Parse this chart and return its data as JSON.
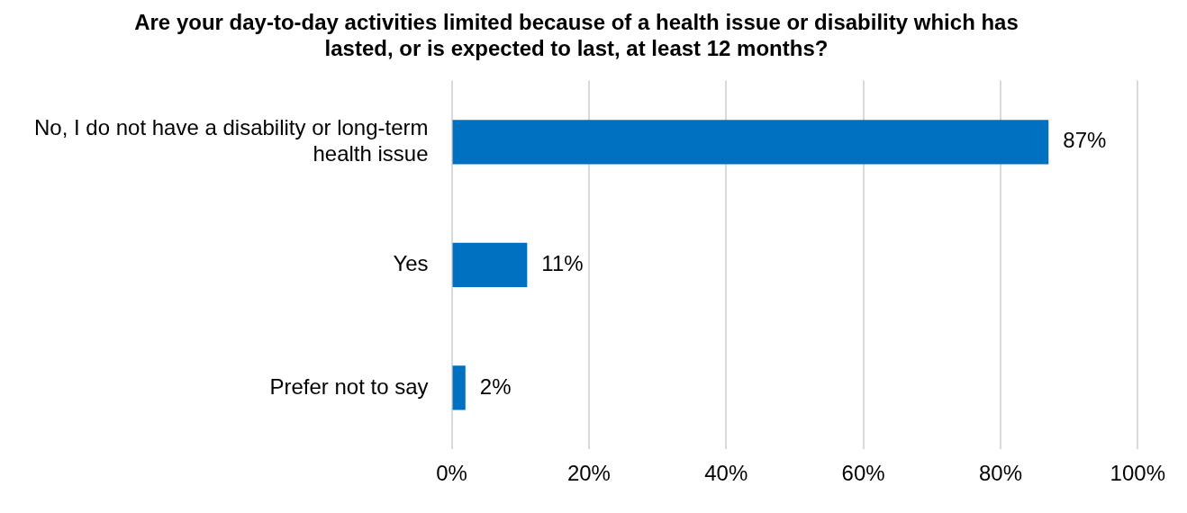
{
  "chart_data": {
    "type": "bar",
    "orientation": "horizontal",
    "title": "Are your day-to-day activities limited because of a health issue or disability which has lasted, or is expected to last, at least 12 months?",
    "categories": [
      "No, I do not have a disability or long-term health issue",
      "Yes",
      "Prefer not to say"
    ],
    "values": [
      87,
      11,
      2
    ],
    "color": "#0070c0",
    "value_labels": [
      "87%",
      "11%",
      "2%"
    ],
    "xlim": [
      0,
      100
    ],
    "xticks": [
      {
        "value": 0,
        "label": "0%"
      },
      {
        "value": 20,
        "label": "20%"
      },
      {
        "value": 40,
        "label": "40%"
      },
      {
        "value": 60,
        "label": "60%"
      },
      {
        "value": 80,
        "label": "80%"
      },
      {
        "value": 100,
        "label": "100%"
      }
    ],
    "grid": "x",
    "legend": false
  }
}
